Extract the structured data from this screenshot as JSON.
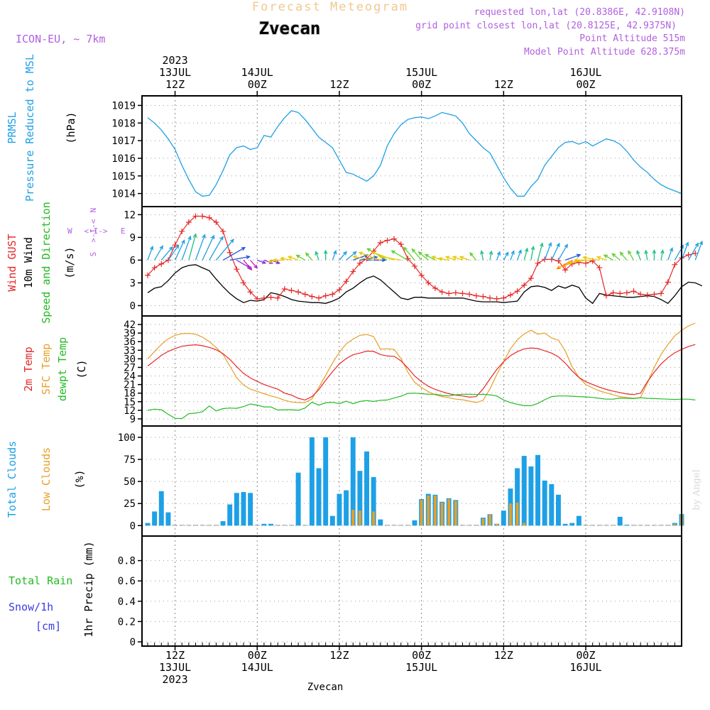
{
  "header": {
    "product": "Forecast Meteogram",
    "location": "Zvecan",
    "model": "ICON-EU, ~ 7km",
    "requested": "requested lon,lat (20.8386E, 42.9108N)",
    "grid_point": "grid point closest lon,lat (20.8125E, 42.9375N)",
    "point_alt": "Point Altitude 515m",
    "model_alt": "Model Point Altitude 628.375m",
    "watermark": "by Angel",
    "footer_location": "Zvecan"
  },
  "time_axis": {
    "hours_total": 78,
    "start_offset_hours": 0,
    "top_labels": [
      {
        "h": 4,
        "lines": [
          "2023",
          "13JUL",
          "12Z"
        ]
      },
      {
        "h": 16,
        "lines": [
          "14JUL",
          "00Z"
        ]
      },
      {
        "h": 28,
        "lines": [
          "12Z"
        ]
      },
      {
        "h": 40,
        "lines": [
          "15JUL",
          "00Z"
        ]
      },
      {
        "h": 52,
        "lines": [
          "12Z"
        ]
      },
      {
        "h": 64,
        "lines": [
          "16JUL",
          "00Z"
        ]
      }
    ],
    "bottom_labels": [
      {
        "h": 4,
        "lines": [
          "12Z",
          "13JUL",
          "2023"
        ]
      },
      {
        "h": 16,
        "lines": [
          "00Z",
          "14JUL"
        ]
      },
      {
        "h": 28,
        "lines": [
          "12Z"
        ]
      },
      {
        "h": 40,
        "lines": [
          "00Z",
          "15JUL"
        ]
      },
      {
        "h": 52,
        "lines": [
          "12Z"
        ]
      },
      {
        "h": 64,
        "lines": [
          "00Z",
          "16JUL"
        ]
      }
    ]
  },
  "panel_labels": {
    "pressure": [
      {
        "text": "PRMSL",
        "color": "#1ea0e6"
      },
      {
        "text": "Pressure Reduced to MSL",
        "color": "#1ea0e6"
      },
      {
        "text": "(hPa)",
        "color": "#000000"
      }
    ],
    "wind": [
      {
        "text": "Wind GUST",
        "color": "#e62828"
      },
      {
        "text": "10m Wind",
        "color": "#000000"
      },
      {
        "text": "Speed and Direction",
        "color": "#22bb22"
      },
      {
        "text": "(m/s)",
        "color": "#000000"
      }
    ],
    "wind_compass": {
      "n": "N",
      "s": "S",
      "w": "W",
      "e": "E"
    },
    "temp": [
      {
        "text": "2m Temp",
        "color": "#e62828"
      },
      {
        "text": "SFC Temp",
        "color": "#e6a028"
      },
      {
        "text": "dewpt Temp",
        "color": "#22bb22"
      },
      {
        "text": "(C)",
        "color": "#000000"
      }
    ],
    "clouds": [
      {
        "text": "Total Clouds",
        "color": "#1ea0e6"
      },
      {
        "text": "Low Clouds",
        "color": "#e6a028"
      },
      {
        "text": "(%)",
        "color": "#000000"
      }
    ],
    "precip_left": [
      {
        "text": "Total  Rain",
        "color": "#22bb22"
      },
      {
        "text": "Snow/1h",
        "color": "#3a3ae6"
      },
      {
        "text": "[cm]",
        "color": "#3a3ae6"
      }
    ],
    "precip_axis": {
      "text": "1hr Precip (mm)",
      "color": "#000000"
    }
  },
  "chart_data": [
    {
      "type": "line",
      "title": "PRMSL Pressure Reduced to MSL",
      "ylabel": "(hPa)",
      "ylim": [
        1013.5,
        1019.3
      ],
      "yticks": [
        1014,
        1015,
        1016,
        1017,
        1018,
        1019
      ],
      "series": [
        {
          "name": "PRMSL",
          "color": "#1ea0e6",
          "values": [
            1018.3,
            1018.0,
            1017.6,
            1017.1,
            1016.5,
            1015.6,
            1014.8,
            1014.1,
            1013.85,
            1013.9,
            1014.5,
            1015.3,
            1016.2,
            1016.6,
            1016.7,
            1016.5,
            1016.6,
            1017.3,
            1017.2,
            1017.8,
            1018.3,
            1018.7,
            1018.6,
            1018.2,
            1017.7,
            1017.2,
            1016.9,
            1016.6,
            1015.9,
            1015.2,
            1015.1,
            1014.9,
            1014.7,
            1015.0,
            1015.6,
            1016.7,
            1017.4,
            1017.9,
            1018.2,
            1018.3,
            1018.35,
            1018.25,
            1018.4,
            1018.6,
            1018.5,
            1018.4,
            1018.0,
            1017.4,
            1017.0,
            1016.6,
            1016.3,
            1015.6,
            1014.9,
            1014.3,
            1013.85,
            1013.85,
            1014.4,
            1014.8,
            1015.6,
            1016.1,
            1016.6,
            1016.9,
            1016.95,
            1016.8,
            1016.95,
            1016.7,
            1016.9,
            1017.1,
            1017.0,
            1016.8,
            1016.4,
            1015.9,
            1015.5,
            1015.2,
            1014.8,
            1014.5,
            1014.3,
            1014.15,
            1014.0
          ]
        }
      ]
    },
    {
      "type": "line",
      "title": "Wind GUST / 10m Wind Speed and Direction",
      "ylabel": "(m/s)",
      "ylim": [
        -0.8,
        12.5
      ],
      "yticks": [
        0,
        3,
        6,
        9,
        12
      ],
      "series": [
        {
          "name": "Wind GUST",
          "color": "#e62828",
          "values": [
            4.0,
            5.0,
            5.5,
            6.0,
            8.0,
            9.8,
            11.0,
            11.8,
            11.8,
            11.6,
            11.0,
            9.8,
            7.0,
            4.8,
            3.0,
            1.8,
            0.9,
            1.0,
            1.1,
            1.0,
            2.2,
            2.0,
            1.8,
            1.5,
            1.2,
            1.0,
            1.3,
            1.5,
            2.1,
            3.2,
            4.5,
            5.6,
            6.2,
            7.2,
            8.3,
            8.6,
            8.8,
            8.1,
            6.2,
            5.2,
            4.0,
            3.0,
            2.3,
            1.8,
            1.6,
            1.7,
            1.6,
            1.5,
            1.3,
            1.2,
            1.0,
            0.9,
            1.0,
            1.4,
            1.9,
            2.7,
            3.6,
            5.6,
            6.1,
            6.1,
            5.9,
            4.7,
            5.5,
            5.7,
            5.6,
            5.9,
            5.0,
            1.3,
            1.7,
            1.6,
            1.7,
            1.9,
            1.5,
            1.4,
            1.5,
            1.6,
            3.1,
            5.4,
            6.3,
            6.7,
            6.9
          ]
        },
        {
          "name": "10m Wind",
          "color": "#000000",
          "values": [
            1.7,
            2.3,
            2.5,
            3.3,
            4.3,
            5.0,
            5.3,
            5.4,
            5.0,
            4.6,
            3.5,
            2.5,
            1.6,
            0.9,
            0.4,
            0.7,
            0.6,
            0.8,
            1.7,
            1.5,
            1.2,
            0.8,
            0.6,
            0.5,
            0.4,
            0.4,
            0.3,
            0.6,
            1.0,
            1.8,
            2.3,
            3.0,
            3.6,
            3.9,
            3.4,
            2.6,
            1.8,
            1.0,
            0.8,
            1.1,
            1.1,
            1.0,
            1.0,
            1.0,
            1.0,
            1.0,
            1.0,
            0.8,
            0.6,
            0.5,
            0.5,
            0.5,
            0.4,
            0.5,
            0.6,
            1.8,
            2.5,
            2.6,
            2.4,
            2.0,
            2.6,
            2.3,
            2.7,
            2.4,
            1.0,
            0.3,
            1.6,
            1.4,
            1.3,
            1.2,
            1.1,
            1.1,
            1.2,
            1.3,
            1.2,
            0.8,
            0.3,
            1.3,
            2.5,
            3.1,
            3.0,
            2.6
          ]
        }
      ],
      "arrows": {
        "wind_direction_deg_from": [
          200,
          210,
          220,
          215,
          205,
          200,
          195,
          200,
          205,
          210,
          220,
          240,
          260,
          300,
          320,
          320,
          290,
          290,
          290,
          80,
          90,
          100,
          110,
          120,
          140,
          160,
          180,
          200,
          220,
          230,
          250,
          260,
          270,
          100,
          110,
          120,
          110,
          100,
          120,
          140,
          140,
          130,
          120,
          110,
          100,
          110,
          110,
          110,
          140,
          170,
          190,
          200,
          210,
          200,
          200,
          195,
          190,
          195,
          200,
          205,
          210,
          250,
          60,
          70,
          80,
          90,
          100,
          110,
          120,
          130,
          140,
          150,
          160,
          170,
          180,
          190,
          200,
          210,
          200,
          210,
          200
        ]
      }
    },
    {
      "type": "line",
      "title": "2m Temp / SFC Temp / dewpt Temp",
      "ylabel": "(C)",
      "ylim": [
        8.0,
        43.5
      ],
      "yticks": [
        9,
        12,
        15,
        18,
        21,
        24,
        27,
        30,
        33,
        36,
        39,
        42
      ],
      "series": [
        {
          "name": "2m Temp",
          "color": "#e62828",
          "values": [
            27.5,
            29.3,
            31.2,
            32.6,
            33.6,
            34.4,
            34.7,
            34.9,
            34.6,
            34.0,
            33.2,
            31.8,
            29.8,
            27.3,
            24.9,
            23.3,
            22.1,
            21.0,
            20.2,
            19.4,
            18.0,
            17.3,
            16.2,
            15.6,
            16.8,
            19.2,
            22.5,
            25.5,
            28.2,
            30.1,
            31.4,
            32.0,
            32.7,
            32.6,
            31.5,
            31.0,
            30.9,
            29.3,
            26.8,
            24.0,
            22.0,
            20.4,
            19.3,
            18.5,
            17.8,
            17.3,
            17.0,
            16.6,
            16.8,
            19.5,
            23.0,
            26.3,
            29.0,
            31.1,
            32.5,
            33.5,
            33.8,
            33.6,
            32.8,
            32.0,
            30.7,
            28.5,
            25.8,
            23.5,
            22.0,
            21.0,
            20.1,
            19.3,
            18.7,
            18.2,
            17.7,
            17.5,
            18.0,
            22.0,
            25.3,
            28.2,
            30.4,
            32.1,
            33.3,
            34.3,
            35.0
          ]
        },
        {
          "name": "SFC Temp",
          "color": "#e6a028",
          "values": [
            30.0,
            32.5,
            35.0,
            37.0,
            38.2,
            38.8,
            38.9,
            38.6,
            37.6,
            36.0,
            34.0,
            31.5,
            27.5,
            23.4,
            20.8,
            19.4,
            18.6,
            17.8,
            17.0,
            16.4,
            15.5,
            14.9,
            14.7,
            14.7,
            16.0,
            20.0,
            24.2,
            28.5,
            32.3,
            35.2,
            36.9,
            38.2,
            38.5,
            37.8,
            33.4,
            33.5,
            33.3,
            30.1,
            25.4,
            21.8,
            20.0,
            18.5,
            17.4,
            16.8,
            16.4,
            15.9,
            15.7,
            15.2,
            14.7,
            15.5,
            19.5,
            24.5,
            29.0,
            33.5,
            36.7,
            38.7,
            40.0,
            38.6,
            39.0,
            37.3,
            36.5,
            32.8,
            27.3,
            23.5,
            21.0,
            19.8,
            18.8,
            18.1,
            17.4,
            16.8,
            16.5,
            16.2,
            16.5,
            21.5,
            27.0,
            31.5,
            35.0,
            38.0,
            40.0,
            41.5,
            42.5
          ]
        },
        {
          "name": "dewpt Temp",
          "color": "#22bb22",
          "values": [
            12.0,
            12.4,
            12.2,
            10.6,
            9.2,
            9.1,
            10.8,
            11.0,
            11.5,
            13.5,
            11.8,
            12.6,
            12.8,
            12.7,
            13.3,
            14.2,
            13.8,
            13.2,
            13.2,
            12.1,
            12.2,
            12.2,
            12.0,
            12.8,
            14.8,
            13.8,
            14.6,
            14.8,
            14.3,
            15.2,
            14.3,
            15.1,
            15.4,
            15.1,
            15.5,
            15.6,
            16.3,
            16.9,
            17.9,
            18.0,
            17.8,
            17.6,
            17.6,
            17.2,
            17.0,
            17.4,
            17.6,
            17.6,
            17.5,
            17.6,
            17.4,
            17.0,
            15.6,
            14.7,
            14.1,
            13.6,
            13.6,
            14.4,
            15.7,
            16.8,
            17.0,
            17.0,
            16.9,
            16.8,
            16.7,
            16.5,
            16.2,
            15.9,
            15.9,
            16.3,
            16.2,
            16.1,
            16.4,
            16.2,
            16.1,
            16.0,
            15.9,
            15.8,
            15.9,
            15.9,
            15.6
          ]
        }
      ]
    },
    {
      "type": "bar",
      "title": "Total Clouds / Low Clouds",
      "ylabel": "(%)",
      "ylim": [
        -7,
        108
      ],
      "yticks": [
        0,
        25,
        50,
        75,
        100
      ],
      "series": [
        {
          "name": "Total Clouds",
          "color": "#1ea0e6",
          "values": [
            3,
            16,
            39,
            15,
            0,
            0,
            0,
            0,
            0,
            0,
            0,
            5,
            24,
            37,
            38,
            37,
            0,
            2,
            2,
            0,
            0,
            0,
            60,
            0,
            100,
            65,
            100,
            11,
            36,
            40,
            100,
            62,
            84,
            55,
            7,
            0,
            0,
            0,
            0,
            6,
            30,
            36,
            35,
            27,
            31,
            29,
            0,
            0,
            0,
            9,
            13,
            2,
            17,
            42,
            65,
            79,
            67,
            80,
            51,
            47,
            35,
            2,
            3,
            11,
            0,
            0,
            0,
            0,
            0,
            10,
            1,
            0,
            0,
            0,
            0,
            0,
            0,
            3,
            13
          ]
        },
        {
          "name": "Low Clouds",
          "color": "#e6a028",
          "values": [
            0,
            0,
            0,
            0,
            0,
            0,
            0,
            0,
            0,
            0,
            0,
            0,
            0,
            0,
            0,
            0,
            0,
            0,
            0,
            0,
            0,
            0,
            0,
            0,
            0,
            0,
            0,
            0,
            0,
            0,
            18,
            17,
            0,
            16,
            0,
            0,
            0,
            0,
            0,
            0,
            29,
            34,
            34,
            26,
            30,
            28,
            0,
            0,
            0,
            8,
            13,
            2,
            0,
            25,
            26,
            3,
            0,
            0,
            0,
            0,
            0,
            0,
            0,
            0,
            0,
            0,
            0,
            0,
            0,
            0,
            0,
            0,
            0,
            0,
            0,
            0,
            0,
            2,
            12
          ]
        }
      ]
    },
    {
      "type": "bar",
      "title": "Total Rain / Snow 1h",
      "ylabel": "1hr Precip (mm)",
      "ylim": [
        0,
        1.0
      ],
      "yticks": [
        0,
        0.2,
        0.4,
        0.6,
        0.8
      ],
      "series": [
        {
          "name": "Total Rain",
          "color": "#22bb22",
          "values": []
        },
        {
          "name": "Snow/1h",
          "color": "#3a3ae6",
          "values": []
        }
      ]
    }
  ]
}
